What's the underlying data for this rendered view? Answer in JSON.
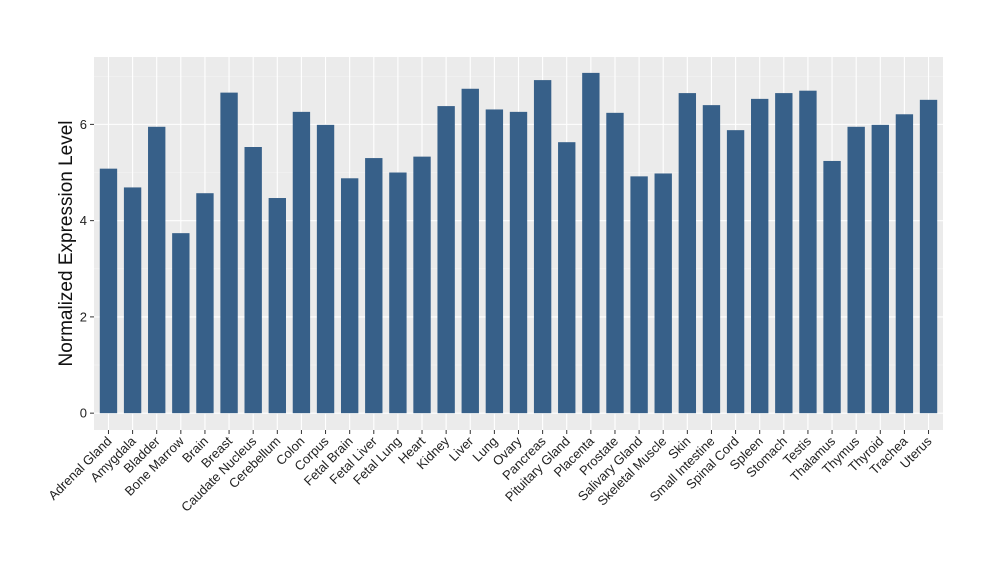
{
  "chart_data": {
    "type": "bar",
    "xlabel": "",
    "ylabel": "Normalized Expression Level",
    "ylim": [
      -0.35,
      7.4
    ],
    "yticks": [
      0,
      2,
      4,
      6
    ],
    "grid": true,
    "legend": "none",
    "colors": {
      "bar": "#376089",
      "panel": "#ebebeb",
      "grid_major": "#ffffff",
      "grid_minor": "#f5f5f5",
      "text": "#222222"
    },
    "categories": [
      "Adrenal Gland",
      "Amygdala",
      "Bladder",
      "Bone Marrow",
      "Brain",
      "Breast",
      "Caudate Nucleus",
      "Cerebellum",
      "Colon",
      "Corpus",
      "Fetal Brain",
      "Fetal Liver",
      "Fetal Lung",
      "Heart",
      "Kidney",
      "Liver",
      "Lung",
      "Ovary",
      "Pancreas",
      "Pituitary Gland",
      "Placenta",
      "Prostate",
      "Salivary Gland",
      "Skeletal Muscle",
      "Skin",
      "Small Intestine",
      "Spinal Cord",
      "Spleen",
      "Stomach",
      "Testis",
      "Thalamus",
      "Thymus",
      "Thyroid",
      "Trachea",
      "Uterus"
    ],
    "values": [
      5.08,
      4.69,
      5.95,
      3.74,
      4.57,
      6.66,
      5.53,
      4.47,
      6.26,
      5.99,
      4.88,
      5.3,
      5.0,
      5.33,
      6.38,
      6.74,
      6.31,
      6.26,
      6.92,
      5.63,
      7.07,
      6.24,
      4.92,
      4.98,
      6.65,
      6.4,
      5.88,
      6.53,
      6.65,
      6.7,
      5.24,
      5.95,
      5.99,
      6.21,
      6.51
    ]
  }
}
